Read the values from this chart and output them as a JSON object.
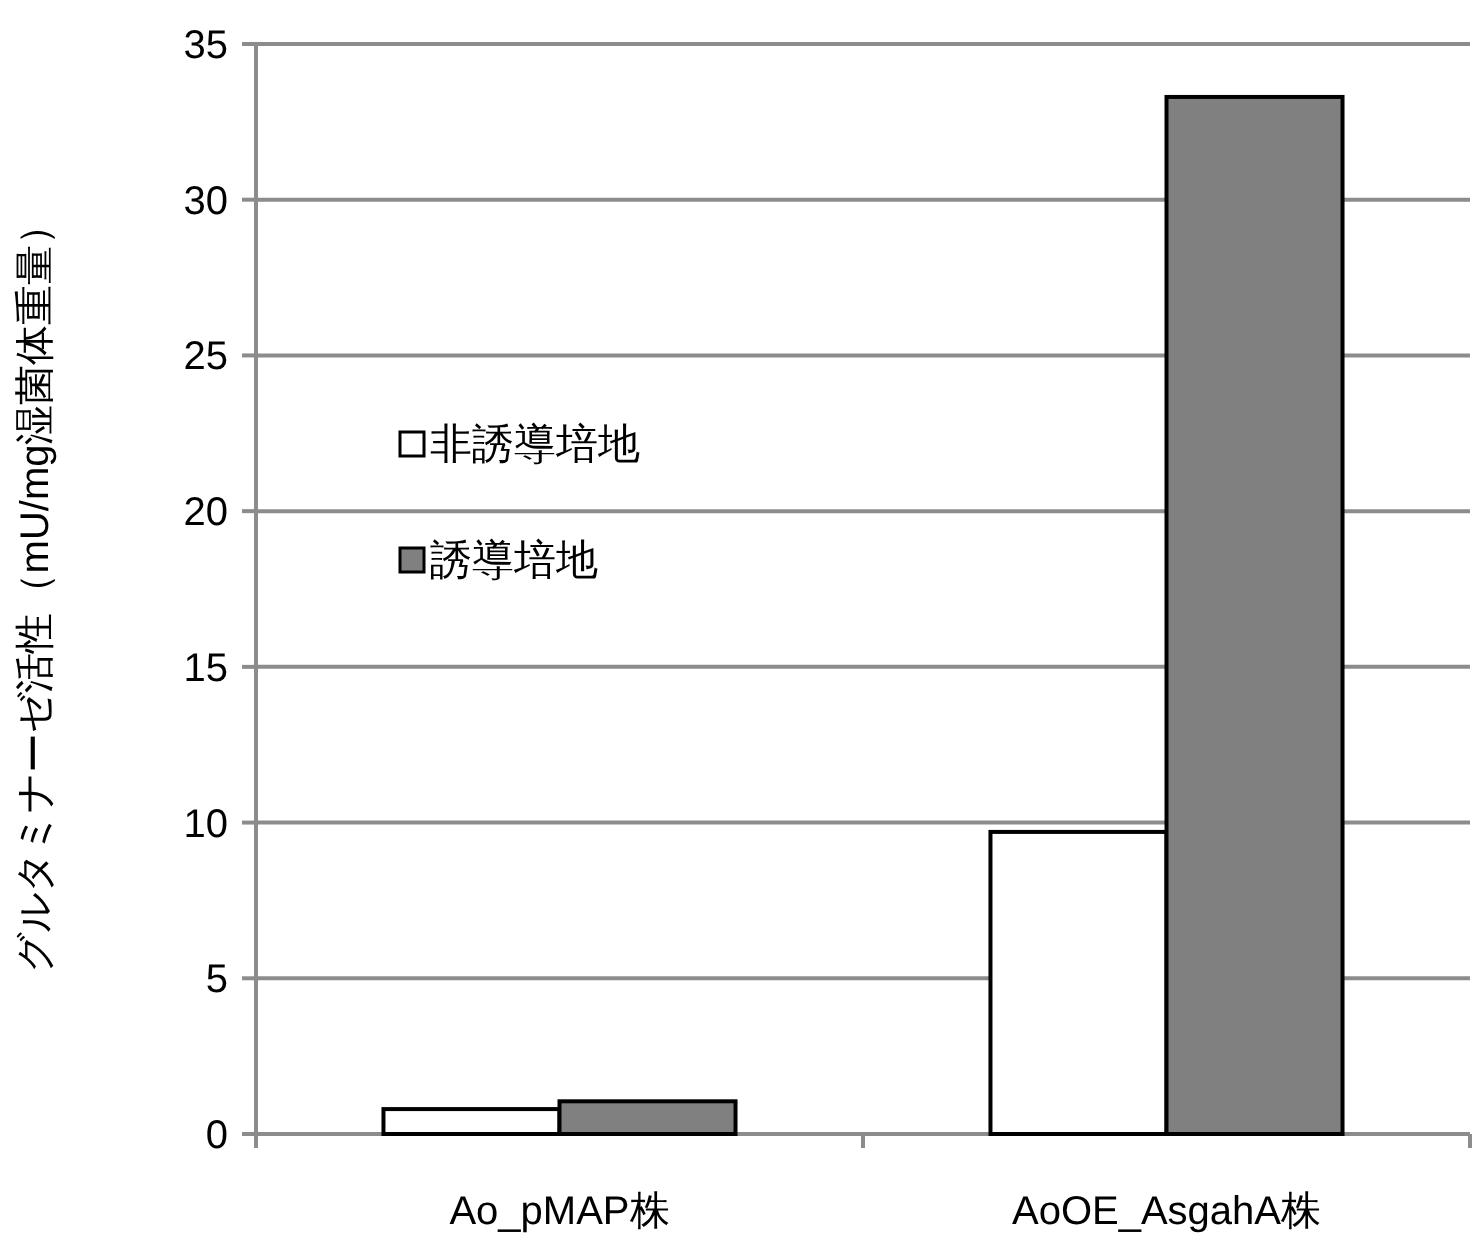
{
  "chart_data": {
    "type": "bar",
    "ylabel": "グルタミナーゼ活性（mU/mg湿菌体重量）",
    "categories": [
      "Ao_pMAP株",
      "AoOE_AsgahA株"
    ],
    "series": [
      {
        "name": "非誘導培地",
        "color": "#ffffff",
        "values": [
          0.8,
          9.7
        ]
      },
      {
        "name": "誘導培地",
        "color": "#808080",
        "values": [
          1.05,
          33.3
        ]
      }
    ],
    "ylim": [
      0,
      35
    ],
    "yticks": [
      0,
      5,
      10,
      15,
      20,
      25,
      30,
      35
    ],
    "grid": "y",
    "legend": "left"
  }
}
